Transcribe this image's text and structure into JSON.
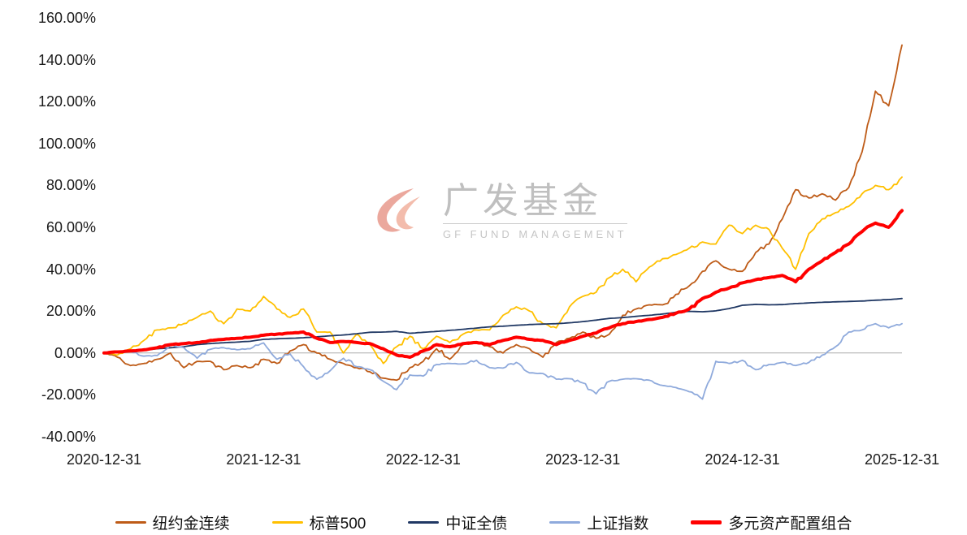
{
  "watermark": {
    "cn": "广发基金",
    "en": "GF FUND MANAGEMENT"
  },
  "chart_data": {
    "type": "line",
    "title": "",
    "xlabel": "",
    "ylabel": "",
    "ylim": [
      -40,
      160
    ],
    "y_tick_step": 20,
    "grid": false,
    "legend_position": "bottom",
    "x_months_total": 60,
    "x_tick_labels": [
      "2020-12-31",
      "2021-12-31",
      "2022-12-31",
      "2023-12-31",
      "2024-12-31",
      "2025-12-31"
    ],
    "y_tick_labels": [
      "160.00%",
      "140.00%",
      "120.00%",
      "100.00%",
      "80.00%",
      "60.00%",
      "40.00%",
      "20.00%",
      "0.00%",
      "-20.00%",
      "-40.00%"
    ],
    "unit": "percent cumulative return, monthly estimates from 2020-12-31 to 2025-12-31",
    "series": [
      {
        "name": "纽约金连续",
        "color": "#BE5B17",
        "width": 1.8,
        "jitter": 1.0,
        "values": [
          0,
          -2,
          -6,
          -5,
          -3,
          0,
          -7,
          -4,
          -4,
          -8,
          -6,
          -7,
          -3,
          -5,
          1,
          4,
          0,
          -3,
          -5,
          -7,
          -9,
          -12,
          -13,
          -7,
          -4,
          2,
          -3,
          4,
          5,
          3,
          0,
          4,
          2,
          -2,
          5,
          7,
          10,
          7,
          9,
          18,
          21,
          23,
          23,
          28,
          32,
          39,
          44,
          40,
          39,
          48,
          52,
          64,
          78,
          74,
          76,
          73,
          79,
          96,
          125,
          118,
          147
        ]
      },
      {
        "name": "标普500",
        "color": "#FFC000",
        "width": 1.8,
        "jitter": 1.0,
        "values": [
          0,
          -1,
          2,
          6,
          11,
          12,
          14,
          17,
          20,
          14,
          21,
          20,
          27,
          21,
          17,
          21,
          10,
          10,
          0,
          9,
          4,
          -5,
          3,
          8,
          2,
          8,
          5,
          9,
          11,
          11,
          18,
          22,
          20,
          14,
          12,
          22,
          27,
          29,
          36,
          40,
          34,
          41,
          45,
          47,
          50,
          53,
          52,
          61,
          57,
          61,
          59,
          50,
          40,
          57,
          64,
          67,
          70,
          76,
          80,
          78,
          84
        ]
      },
      {
        "name": "中证全债",
        "color": "#203864",
        "width": 1.8,
        "jitter": 0.12,
        "values": [
          0,
          0.5,
          1,
          1.4,
          2,
          2.5,
          3,
          4,
          4.5,
          4.9,
          5.2,
          5.6,
          6.5,
          6.8,
          7,
          7.3,
          7.7,
          8.2,
          8.6,
          9.2,
          9.9,
          10,
          10.3,
          9.4,
          9.9,
          10.3,
          10.8,
          11.3,
          11.9,
          12.5,
          12.8,
          13.2,
          13.6,
          13.8,
          14,
          14.4,
          15,
          15.7,
          16.5,
          16.9,
          17.5,
          18,
          18.6,
          19.4,
          19.9,
          19.7,
          20.1,
          21.2,
          22.8,
          23.2,
          23,
          23.1,
          23.6,
          23.9,
          24.2,
          24.4,
          24.6,
          24.8,
          25.2,
          25.5,
          26
        ]
      },
      {
        "name": "上证指数",
        "color": "#8FAADC",
        "width": 1.8,
        "jitter": 0.9,
        "values": [
          0,
          0.3,
          1,
          -1.5,
          -1.2,
          4,
          2.5,
          -2.5,
          1.8,
          2.5,
          1.5,
          2,
          4.8,
          -3,
          -0.5,
          -6.5,
          -12.5,
          -8.5,
          -2.5,
          -6.5,
          -8,
          -13.5,
          -17.5,
          -10.5,
          -11,
          -5.5,
          -5,
          -5.2,
          -3.5,
          -7,
          -7.2,
          -4.5,
          -9.5,
          -9.8,
          -12.5,
          -12.3,
          -14.3,
          -19.5,
          -13.5,
          -12.5,
          -12.3,
          -13,
          -15.5,
          -16.5,
          -18.5,
          -22,
          -4,
          -5,
          -3.5,
          -8,
          -5.5,
          -4.5,
          -6,
          -4.5,
          -1,
          3,
          10,
          11,
          14,
          12,
          14
        ]
      },
      {
        "name": "多元资产配置组合",
        "color": "#FF0000",
        "width": 4,
        "jitter": 0.55,
        "values": [
          0,
          0.5,
          1,
          1.5,
          2.5,
          4,
          4.5,
          5,
          6,
          6.5,
          7,
          7.5,
          8.5,
          9,
          9.5,
          10,
          7,
          5,
          5.5,
          5,
          4.5,
          2,
          -1,
          -2,
          1,
          4,
          3,
          4.5,
          5,
          4,
          6,
          7.5,
          6.5,
          6,
          4,
          6,
          8,
          9.5,
          12,
          14,
          15,
          16,
          17,
          19,
          21,
          26,
          29,
          31,
          33.5,
          35,
          36,
          37,
          34,
          40,
          44,
          48,
          52,
          58,
          62,
          60,
          68
        ]
      }
    ]
  }
}
